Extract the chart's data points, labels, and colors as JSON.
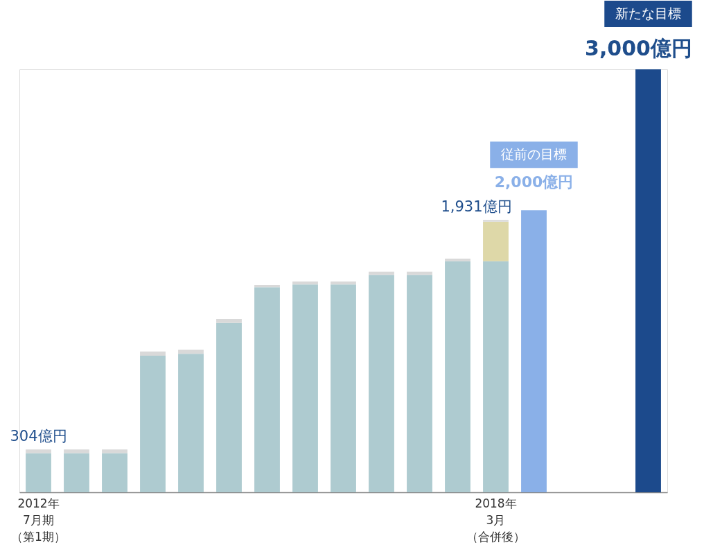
{
  "chart_data": {
    "type": "bar",
    "stacked": true,
    "tick_labels": "x",
    "categories": [
      "2012年7月期（第1期）",
      null,
      null,
      null,
      null,
      null,
      null,
      null,
      null,
      null,
      null,
      null,
      "2018年3月（合併後）",
      null,
      null,
      null,
      null
    ],
    "series": [
      {
        "color": "#aecbd0",
        "values": [
          278,
          278,
          278,
          969,
          982,
          1201,
          1454,
          1474,
          1474,
          1542,
          1542,
          1639,
          1639,
          null,
          null,
          null,
          null
        ]
      },
      {
        "color": "#ded8a8",
        "values": [
          null,
          null,
          null,
          null,
          null,
          null,
          null,
          null,
          null,
          null,
          null,
          null,
          280,
          null,
          null,
          null,
          null
        ]
      },
      {
        "color": "#d9d9d9",
        "values": [
          26,
          26,
          26,
          29,
          29,
          29,
          16,
          21,
          21,
          23,
          23,
          18,
          12,
          null,
          null,
          null,
          null
        ]
      },
      {
        "name": "従前の目標",
        "color": "#8ab0e8",
        "values": [
          null,
          null,
          null,
          null,
          null,
          null,
          null,
          null,
          null,
          null,
          null,
          null,
          null,
          2000,
          null,
          null,
          null
        ],
        "value_labels": [
          null,
          null,
          null,
          null,
          null,
          null,
          null,
          null,
          null,
          null,
          null,
          null,
          null,
          "2,000億円",
          null,
          null,
          null
        ]
      },
      {
        "name": "新たな目標",
        "color": "#1c4a8c",
        "values": [
          null,
          null,
          null,
          null,
          null,
          null,
          null,
          null,
          null,
          null,
          null,
          null,
          null,
          null,
          null,
          null,
          3000
        ],
        "value_labels": [
          null,
          null,
          null,
          null,
          null,
          null,
          null,
          null,
          null,
          null,
          null,
          null,
          null,
          null,
          null,
          null,
          "3,000億円"
        ]
      }
    ],
    "totals": [
      "304億円",
      null,
      null,
      null,
      null,
      null,
      null,
      null,
      null,
      null,
      null,
      null,
      "1,931億円",
      null,
      null,
      null,
      null
    ]
  }
}
